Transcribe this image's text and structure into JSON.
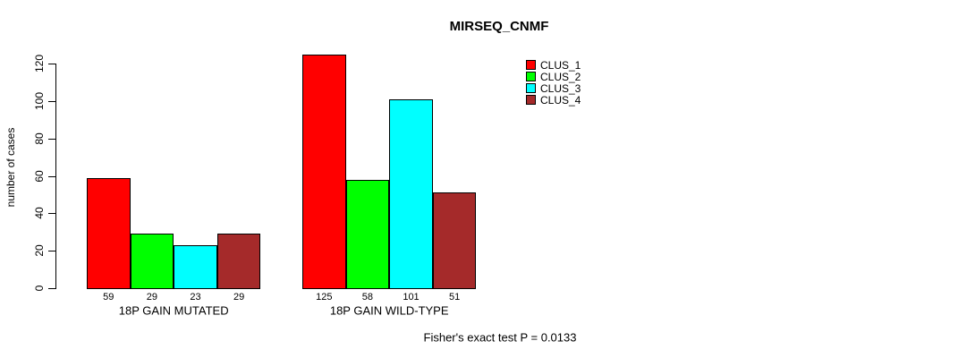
{
  "chart_data": {
    "type": "bar",
    "title": "MIRSEQ_CNMF",
    "ylabel": "number of cases",
    "xlabel": "",
    "ylim": [
      0,
      130
    ],
    "yticks": [
      0,
      20,
      40,
      60,
      80,
      100,
      120
    ],
    "categories": [
      "18P GAIN MUTATED",
      "18P GAIN WILD-TYPE"
    ],
    "series": [
      {
        "name": "CLUS_1",
        "color": "#FF0000",
        "values": [
          59,
          125
        ]
      },
      {
        "name": "CLUS_2",
        "color": "#00FF00",
        "values": [
          29,
          58
        ]
      },
      {
        "name": "CLUS_3",
        "color": "#00FFFF",
        "values": [
          23,
          101
        ]
      },
      {
        "name": "CLUS_4",
        "color": "#A52A2A",
        "values": [
          29,
          51
        ]
      }
    ],
    "bar_value_labels": [
      [
        "59",
        "29",
        "23",
        "29"
      ],
      [
        "125",
        "58",
        "101",
        "51"
      ]
    ],
    "legend_position": "top-right",
    "grid": false,
    "annotation": "Fisher's exact test P = 0.0133"
  }
}
